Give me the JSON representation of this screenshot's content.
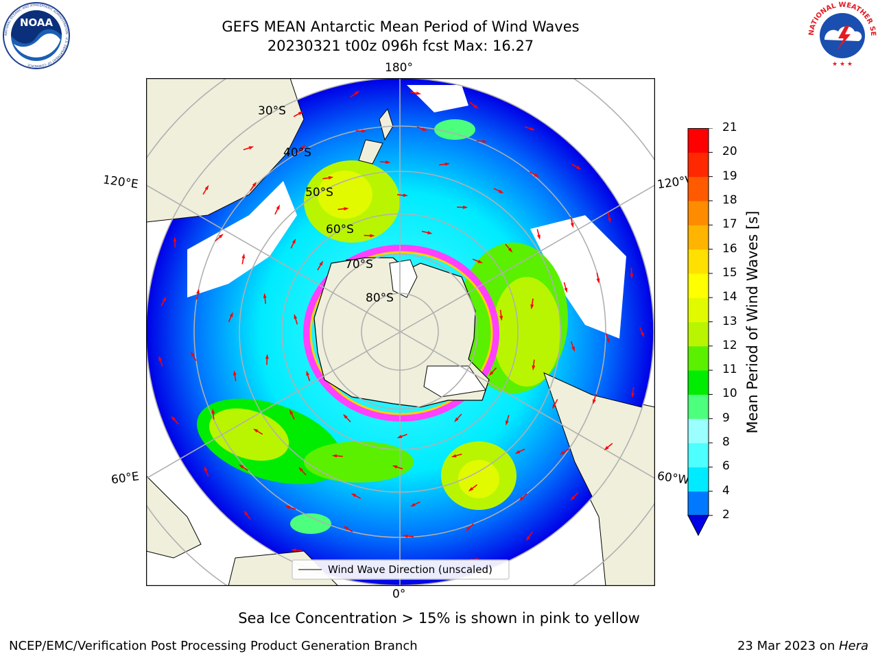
{
  "header": {
    "title_line1": "GEFS MEAN Antarctic Mean Period of Wind Waves",
    "title_line2": "20230321 t00z 096h fcst   Max: 16.27"
  },
  "logos": {
    "left_logo_text": "NOAA",
    "left_logo_ring_text": "NATIONAL OCEANIC AND ATMOSPHERIC ADMINISTRATION · U.S. DEPARTMENT OF COMMERCE",
    "right_logo_ring_text": "NATIONAL WEATHER SERVICE"
  },
  "map": {
    "lon_labels": {
      "top": "180°",
      "bottom": "0°",
      "left_upper": "120°E",
      "left_lower": "60°E",
      "right_upper": "120°W",
      "right_lower": "60°W"
    },
    "lat_labels": [
      "30°S",
      "40°S",
      "50°S",
      "60°S",
      "70°S",
      "80°S"
    ],
    "legend_label": "Wind Wave Direction (unscaled)"
  },
  "colorbar": {
    "label": "Mean Period of Wind Waves [s]",
    "ticks": [
      "2",
      "4",
      "6",
      "8",
      "9",
      "10",
      "11",
      "12",
      "13",
      "14",
      "15",
      "16",
      "17",
      "18",
      "19",
      "20",
      "21"
    ],
    "colors": [
      "#0000e6",
      "#0078ff",
      "#00ebff",
      "#4dffff",
      "#9bffff",
      "#4cff7c",
      "#00ec00",
      "#5af000",
      "#b9f500",
      "#e1fa00",
      "#ffff00",
      "#ffe000",
      "#ffb400",
      "#ff8c00",
      "#ff5a00",
      "#ff2800",
      "#ff0000"
    ],
    "under_color": "#0000e6"
  },
  "annotations": {
    "sea_ice_note": "Sea Ice Concentration > 15% is shown in pink to yellow"
  },
  "footer": {
    "left": "NCEP/EMC/Verification Post Processing Product Generation Branch",
    "right_prefix": "23 Mar 2023 on ",
    "right_machine": "Hera"
  }
}
